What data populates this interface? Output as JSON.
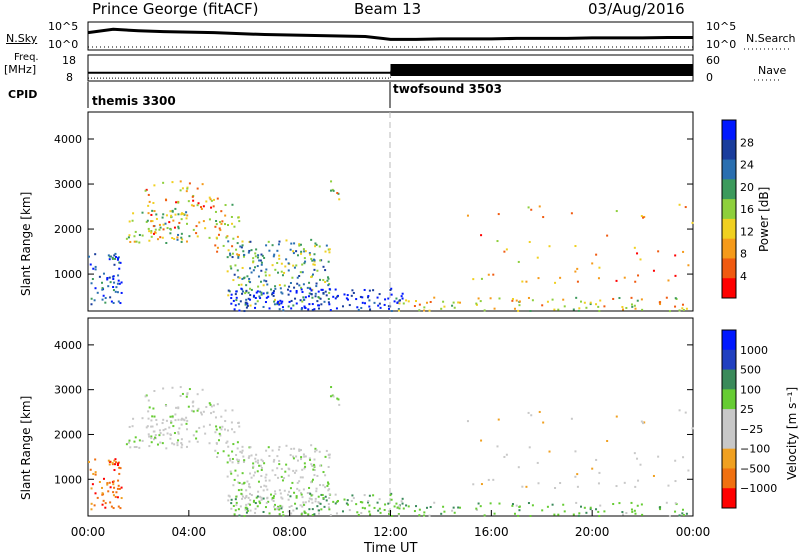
{
  "header": {
    "station": "Prince George (fitACF)",
    "beam": "Beam 13",
    "date": "03/Aug/2016"
  },
  "side_labels": {
    "nsky": "N.Sky",
    "freq_line1": "Freq.",
    "freq_line2": "[MHz]",
    "cpid": "CPID",
    "nsearch": "N.Search",
    "nave": "Nave"
  },
  "cpid_labels": [
    "themis 3300",
    "twofsound 3503"
  ],
  "colors": {
    "power": [
      "#0018ff",
      "#1a3d9c",
      "#2a6fb0",
      "#3c9a5c",
      "#8ecf3c",
      "#f0d020",
      "#f59a1a",
      "#f05a10",
      "#ff0000"
    ],
    "velocity": [
      "#0018ff",
      "#2040c0",
      "#3a8a5a",
      "#66cc33",
      "#c8c8c8",
      "#c8c8c8",
      "#f0a020",
      "#f07010",
      "#ff0000"
    ]
  },
  "chart_data": [
    {
      "type": "line",
      "panel": "noise",
      "left_ticks": [
        "10^5",
        "10^0"
      ],
      "right_ticks": [
        "10^5",
        "10^0"
      ],
      "x": [
        0,
        1,
        2,
        3,
        4,
        5,
        6,
        7,
        8,
        9,
        10,
        11,
        12,
        13,
        14,
        15,
        16,
        17,
        18,
        19,
        20,
        21,
        22,
        23,
        24
      ],
      "series": [
        {
          "values": [
            3.2,
            3.9,
            3.6,
            3.4,
            3.3,
            3.2,
            3.0,
            2.8,
            2.7,
            2.6,
            2.5,
            2.4,
            1.8,
            1.8,
            1.9,
            1.9,
            1.9,
            2.0,
            2.0,
            2.0,
            2.1,
            2.1,
            2.1,
            2.2,
            2.2
          ]
        },
        {
          "values": [
            0.2,
            0.2,
            0.2,
            0.2,
            0.2,
            0.2,
            0.2,
            0.2,
            0.2,
            0.2,
            0.2,
            0.2,
            0.2,
            0.2,
            0.2,
            0.2,
            0.2,
            0.2,
            0.2,
            0.2,
            0.2,
            0.2,
            0.2,
            0.2,
            0.2
          ]
        }
      ]
    },
    {
      "type": "line",
      "panel": "frequency",
      "left_ticks": [
        "18",
        "8"
      ],
      "right_ticks": [
        "60",
        "0"
      ],
      "x": [
        0,
        12,
        12.01,
        24
      ],
      "series": [
        {
          "values": [
            10.5,
            10.5,
            10.5,
            10.5
          ]
        },
        {
          "values": [
            2,
            2,
            20,
            20
          ]
        }
      ]
    },
    {
      "type": "heatmap",
      "panel": "power",
      "ylabel": "Slant Range [km]",
      "colorbar_label": "Power [dB]",
      "colorbar_ticks": [
        "28",
        "24",
        "20",
        "16",
        "12",
        "8",
        "4"
      ],
      "y_ticks": [
        "4000",
        "3000",
        "2000",
        "1000"
      ],
      "ylim": [
        180,
        4600
      ],
      "xlim": [
        0,
        24
      ]
    },
    {
      "type": "heatmap",
      "panel": "velocity",
      "ylabel": "Slant Range [km]",
      "colorbar_label": "Velocity [m s⁻¹]",
      "colorbar_ticks": [
        "1000",
        "500",
        "100",
        "25",
        "−25",
        "−100",
        "−500",
        "−1000"
      ],
      "y_ticks": [
        "4000",
        "3000",
        "2000",
        "1000"
      ],
      "ylim": [
        180,
        4600
      ],
      "xlim": [
        0,
        24
      ],
      "xlabel": "Time UT",
      "x_ticks": [
        "00:00",
        "04:00",
        "08:00",
        "12:00",
        "16:00",
        "20:00",
        "00:00"
      ]
    }
  ]
}
